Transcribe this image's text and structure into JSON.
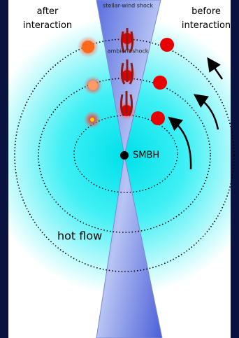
{
  "labels": {
    "after": "after interaction",
    "before": "before interaction",
    "stellar_wind_shock": "stellar-wind shock",
    "ambient_shock": "ambient shock",
    "smbh": "SMBH",
    "hot_flow": "hot flow"
  }
}
